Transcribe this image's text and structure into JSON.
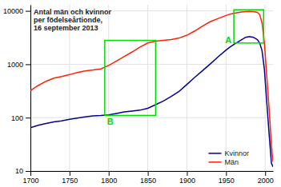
{
  "chart_data": {
    "type": "line",
    "title": "Antal män och kvinnor\nper födelseårtionde,\n16 september 2013",
    "x": [
      1700,
      1710,
      1720,
      1730,
      1740,
      1750,
      1760,
      1770,
      1780,
      1790,
      1800,
      1810,
      1820,
      1830,
      1840,
      1850,
      1860,
      1870,
      1880,
      1890,
      1900,
      1910,
      1920,
      1930,
      1940,
      1950,
      1955,
      1960,
      1965,
      1970,
      1975,
      1980,
      1985,
      1990,
      1993,
      1996,
      1999,
      2002,
      2005,
      2008,
      2010
    ],
    "series": [
      {
        "name": "Män",
        "color": "#ff2200",
        "values": [
          320,
          400,
          480,
          550,
          590,
          640,
          700,
          750,
          780,
          820,
          950,
          1150,
          1400,
          1700,
          2100,
          2500,
          2700,
          2800,
          2900,
          3100,
          3500,
          4200,
          5200,
          6300,
          7200,
          8200,
          8700,
          9000,
          9300,
          9500,
          9700,
          9800,
          9700,
          9400,
          8500,
          6000,
          2500,
          600,
          150,
          30,
          15
        ]
      },
      {
        "name": "Kvinnor",
        "color": "#000099",
        "values": [
          65,
          72,
          78,
          83,
          87,
          93,
          98,
          103,
          108,
          110,
          113,
          120,
          128,
          133,
          138,
          150,
          175,
          205,
          250,
          310,
          420,
          570,
          760,
          1020,
          1380,
          1850,
          2100,
          2350,
          2600,
          2900,
          3200,
          3300,
          3200,
          2900,
          2500,
          1800,
          800,
          200,
          50,
          14,
          12
        ]
      }
    ],
    "xlim": [
      1700,
      2010
    ],
    "xticks": [
      1700,
      1750,
      1800,
      1850,
      1900,
      1950,
      2000
    ],
    "ylim": [
      10,
      13000
    ],
    "yticks": [
      10,
      100,
      1000,
      10000
    ],
    "log": "y",
    "grid": true,
    "legend": "lower right",
    "annotations": [
      {
        "text": "A",
        "color": "#00dd00",
        "x": [
          1960,
          1998
        ],
        "y": [
          2500,
          10500
        ]
      },
      {
        "text": "B",
        "color": "#00dd00",
        "x": [
          1795,
          1860
        ],
        "y": [
          110,
          2800
        ]
      }
    ]
  }
}
